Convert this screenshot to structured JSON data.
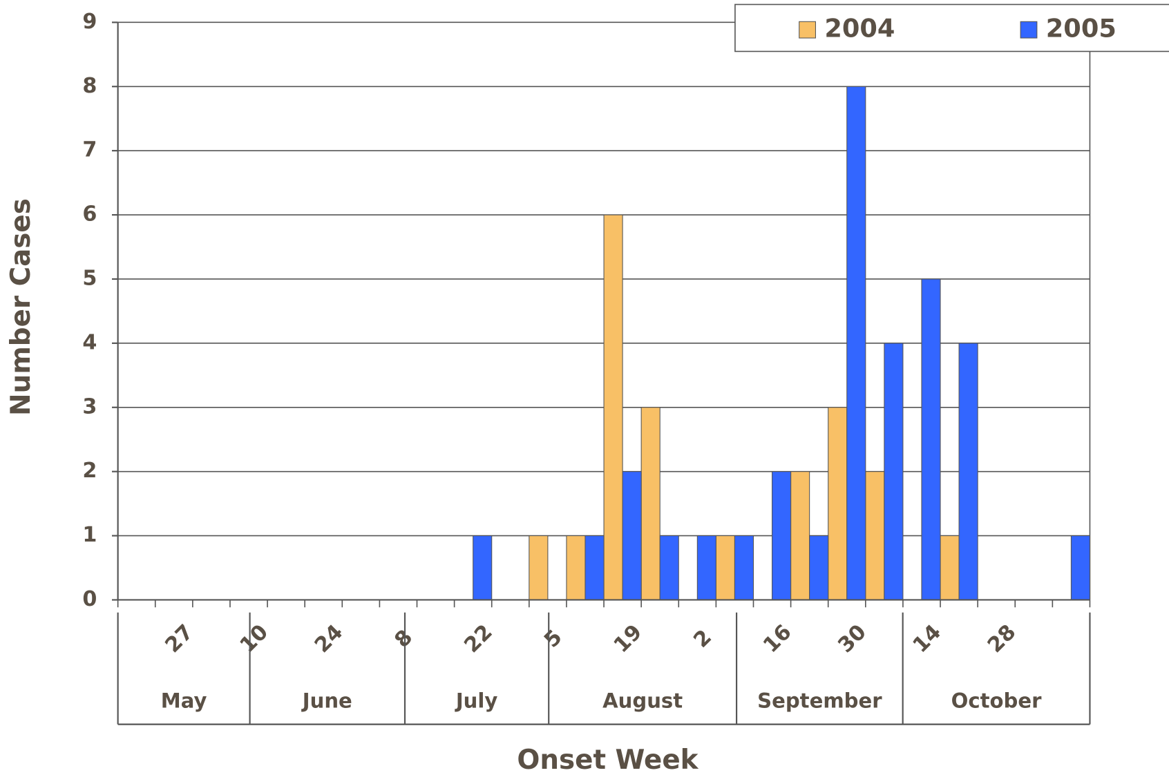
{
  "chart_data": {
    "type": "bar",
    "x_label": "Onset Week",
    "y_label": "Number Cases",
    "categories": [
      null,
      "27",
      null,
      "10",
      null,
      "24",
      null,
      "8",
      null,
      "22",
      null,
      "5",
      null,
      "19",
      null,
      "2",
      null,
      "16",
      null,
      "30",
      null,
      "14",
      null,
      "28",
      null,
      null
    ],
    "months": [
      "May",
      "June",
      "July",
      "August",
      "September",
      "October"
    ],
    "series": [
      {
        "name": "2004",
        "color": "#f8c066",
        "values": [
          0,
          0,
          0,
          0,
          0,
          0,
          0,
          0,
          0,
          0,
          0,
          1,
          1,
          6,
          3,
          0,
          1,
          0,
          2,
          3,
          2,
          0,
          1,
          0,
          0,
          0
        ]
      },
      {
        "name": "2005",
        "color": "#3366ff",
        "values": [
          0,
          0,
          0,
          0,
          0,
          0,
          0,
          0,
          0,
          1,
          0,
          0,
          1,
          2,
          1,
          1,
          1,
          2,
          1,
          8,
          4,
          5,
          4,
          0,
          0,
          1
        ]
      }
    ],
    "ylim": [
      0,
      9
    ],
    "yticks": [
      0,
      1,
      2,
      3,
      4,
      5,
      6,
      7,
      8,
      9
    ],
    "grid": true,
    "legend": "top-right"
  }
}
